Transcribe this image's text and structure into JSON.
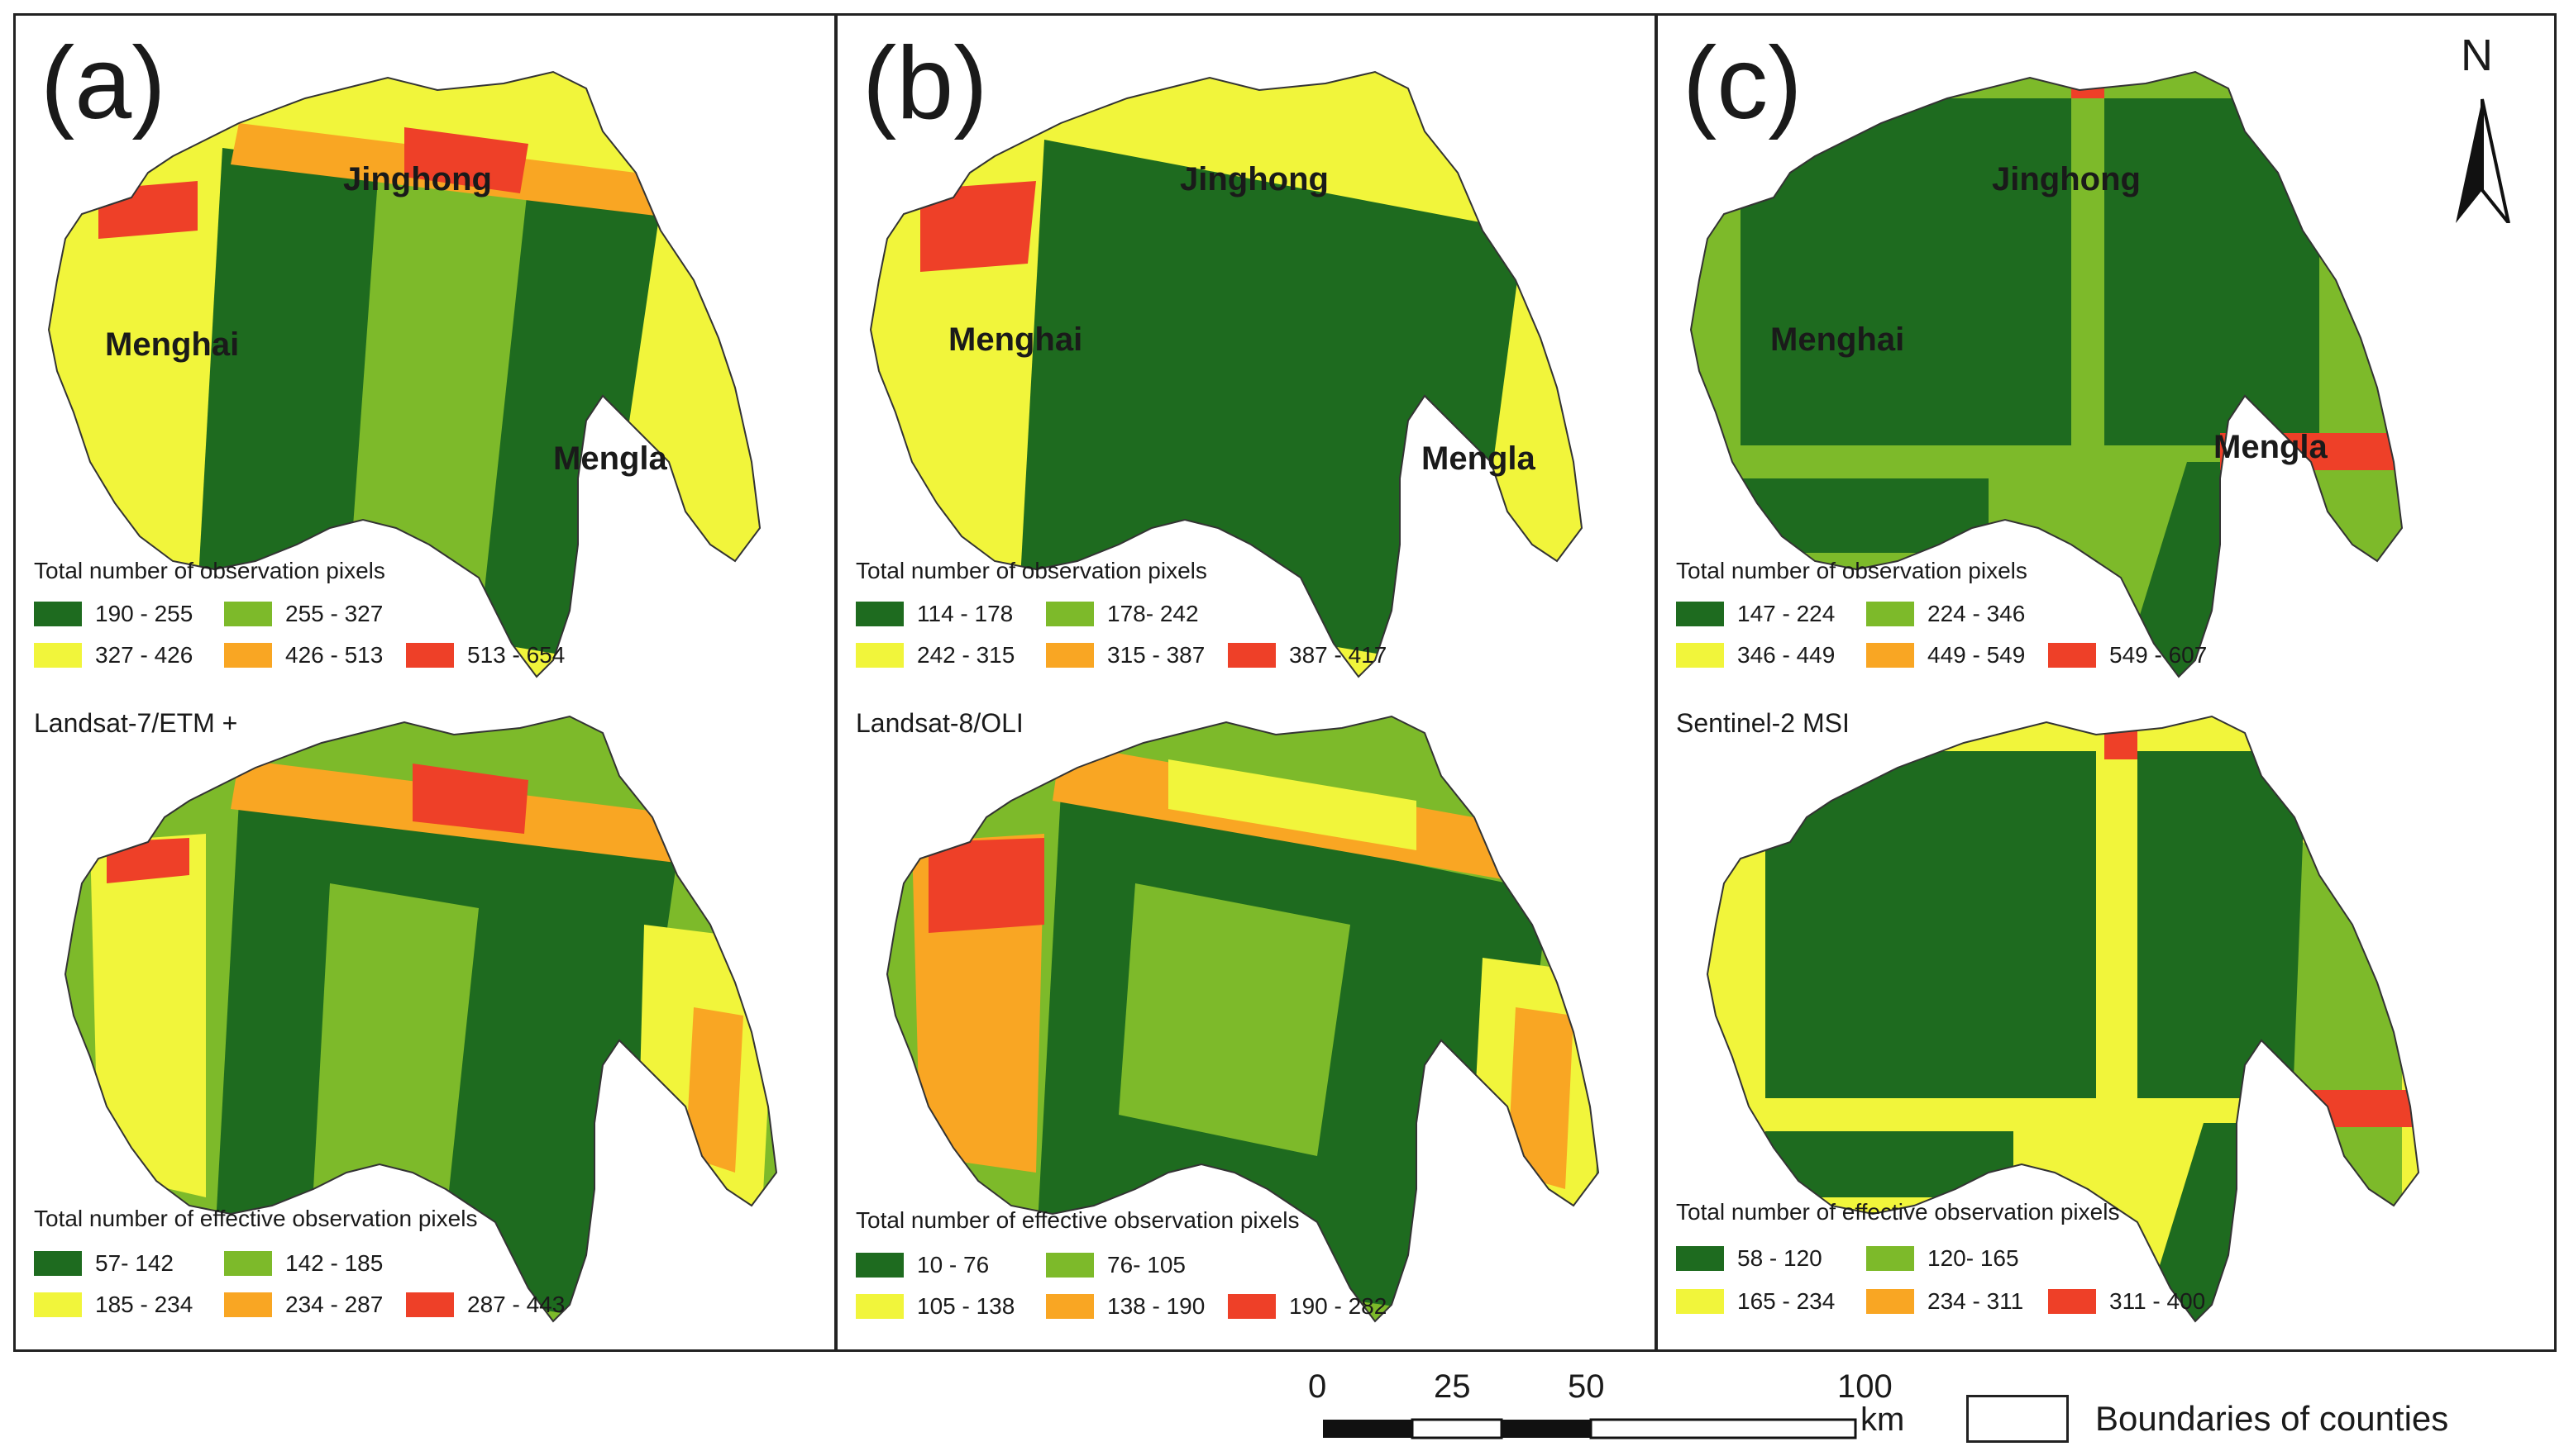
{
  "colors": {
    "class1": "#1e6b1f",
    "class2": "#7dba2a",
    "class3": "#f1f53b",
    "class4": "#f9a623",
    "class5": "#ee4028"
  },
  "panels": [
    {
      "letter": "(a)",
      "towns": {
        "jinghong": "Jinghong",
        "menghai": "Menghai",
        "mengla": "Mengla"
      },
      "top_legend": {
        "title": "Total number of observation pixels",
        "ranges": [
          "190 - 255",
          "255 - 327",
          "327 - 426",
          "426 - 513",
          "513 - 654"
        ]
      },
      "sensor": "Landsat-7/ETM +",
      "bottom_legend": {
        "title": "Total number of effective observation pixels",
        "ranges": [
          "57- 142",
          "142 - 185",
          "185 - 234",
          "234 - 287",
          "287 - 443"
        ]
      }
    },
    {
      "letter": "(b)",
      "towns": {
        "jinghong": "Jinghong",
        "menghai": "Menghai",
        "mengla": "Mengla"
      },
      "top_legend": {
        "title": "Total number of observation pixels",
        "ranges": [
          "114 - 178",
          "178- 242",
          "242 - 315",
          "315 - 387",
          "387 - 417"
        ]
      },
      "sensor": "Landsat-8/OLI",
      "bottom_legend": {
        "title": "Total number of effective observation pixels",
        "ranges": [
          "10 - 76",
          "76- 105",
          "105 - 138",
          "138 - 190",
          "190 - 282"
        ]
      }
    },
    {
      "letter": "(c)",
      "towns": {
        "jinghong": "Jinghong",
        "menghai": "Menghai",
        "mengla": "Mengla"
      },
      "top_legend": {
        "title": "Total number of observation pixels",
        "ranges": [
          "147 - 224",
          "224 - 346",
          "346 - 449",
          "449 - 549",
          "549 - 607"
        ]
      },
      "sensor": "Sentinel-2 MSI",
      "bottom_legend": {
        "title": "Total number of effective observation pixels",
        "ranges": [
          "58 - 120",
          "120- 165",
          "165 - 234",
          "234 - 311",
          "311 - 400"
        ]
      }
    }
  ],
  "north_arrow": {
    "label": "N"
  },
  "scale_bar": {
    "ticks": [
      "0",
      "25",
      "50",
      "100"
    ],
    "unit": "km"
  },
  "boundary_legend": {
    "label": "Boundaries of counties"
  }
}
